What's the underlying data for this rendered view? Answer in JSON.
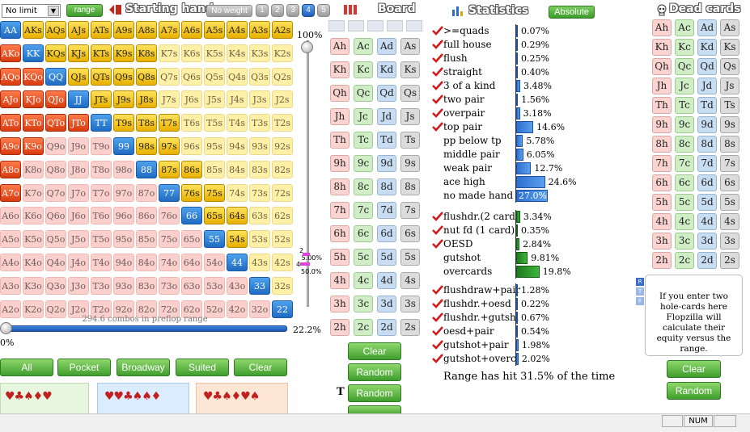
{
  "toolbar": {
    "limit_select": "No limit",
    "range_button": "range",
    "starting_hand_title": "Starting hand",
    "no_weight_button": "No weight",
    "weight_buttons": [
      "1",
      "2",
      "3",
      "4",
      "5"
    ],
    "board_title": "Board",
    "statistics_title": "Statistics",
    "absolute_button": "Absolute",
    "dead_cards_title": "Dead cards"
  },
  "grid": {
    "ranks": [
      "A",
      "K",
      "Q",
      "J",
      "T",
      "9",
      "8",
      "7",
      "6",
      "5",
      "4",
      "3",
      "2"
    ],
    "selected": [
      "AA",
      "AKs",
      "AQs",
      "AJs",
      "ATs",
      "A9s",
      "A8s",
      "A7s",
      "A6s",
      "A5s",
      "A4s",
      "A3s",
      "A2s",
      "AKo",
      "KK",
      "KQs",
      "KJs",
      "KTs",
      "K9s",
      "K8s",
      "AQo",
      "KQo",
      "QQ",
      "QJs",
      "QTs",
      "Q9s",
      "Q8s",
      "AJo",
      "KJo",
      "QJo",
      "JJ",
      "JTs",
      "J9s",
      "J8s",
      "ATo",
      "KTo",
      "QTo",
      "JTo",
      "TT",
      "T9s",
      "T8s",
      "T7s",
      "A9o",
      "K9o",
      "99",
      "98s",
      "97s",
      "A8o",
      "88",
      "87s",
      "86s",
      "A7o",
      "77",
      "76s",
      "75s",
      "66",
      "65s",
      "64s",
      "55",
      "54s",
      "44",
      "33",
      "22"
    ],
    "combos_text": "294.6 combos in preflop range",
    "range_pct": "22.2%",
    "slider_min_label": "0%"
  },
  "vslider": {
    "top_label": "100%",
    "small_labels": [
      "2",
      "5.00%",
      "4",
      "50.0%"
    ]
  },
  "range_buttons": [
    "All",
    "Pocket",
    "Broadway",
    "Suited",
    "Clear"
  ],
  "board": {
    "rows": [
      [
        "Ah",
        "Ac",
        "Ad",
        "As"
      ],
      [
        "Kh",
        "Kc",
        "Kd",
        "Ks"
      ],
      [
        "Qh",
        "Qc",
        "Qd",
        "Qs"
      ],
      [
        "Jh",
        "Jc",
        "Jd",
        "Js"
      ],
      [
        "Th",
        "Tc",
        "Td",
        "Ts"
      ],
      [
        "9h",
        "9c",
        "9d",
        "9s"
      ],
      [
        "8h",
        "8c",
        "8d",
        "8s"
      ],
      [
        "7h",
        "7c",
        "7d",
        "7s"
      ],
      [
        "6h",
        "6c",
        "6d",
        "6s"
      ],
      [
        "5h",
        "5c",
        "5d",
        "5s"
      ],
      [
        "4h",
        "4c",
        "4d",
        "4s"
      ],
      [
        "3h",
        "3c",
        "3d",
        "3s"
      ],
      [
        "2h",
        "2c",
        "2d",
        "2s"
      ]
    ],
    "clear_button": "Clear",
    "random_button": "Random",
    "turn_marker": "T",
    "random_turn_button": "Random"
  },
  "statistics": {
    "made_hands": [
      {
        "label": ">=quads",
        "value": "0.07%",
        "pct": 0.07,
        "checked": true
      },
      {
        "label": "full house",
        "value": "0.29%",
        "pct": 0.29,
        "checked": true
      },
      {
        "label": "flush",
        "value": "0.25%",
        "pct": 0.25,
        "checked": true
      },
      {
        "label": "straight",
        "value": "0.40%",
        "pct": 0.4,
        "checked": true
      },
      {
        "label": "3 of a kind",
        "value": "3.48%",
        "pct": 3.48,
        "checked": true
      },
      {
        "label": "two pair",
        "value": "1.56%",
        "pct": 1.56,
        "checked": true
      },
      {
        "label": "overpair",
        "value": "3.18%",
        "pct": 3.18,
        "checked": true
      },
      {
        "label": "top pair",
        "value": "14.6%",
        "pct": 14.6,
        "checked": true
      },
      {
        "label": "pp below tp",
        "value": "5.78%",
        "pct": 5.78,
        "checked": false
      },
      {
        "label": "middle pair",
        "value": "6.05%",
        "pct": 6.05,
        "checked": false
      },
      {
        "label": "weak pair",
        "value": "12.7%",
        "pct": 12.7,
        "checked": false
      },
      {
        "label": "ace high",
        "value": "24.6%",
        "pct": 24.6,
        "checked": false
      },
      {
        "label": "no made hand",
        "value": "27.0%",
        "pct": 27.0,
        "checked": false
      }
    ],
    "draws": [
      {
        "label": "flushdr.(2 card)",
        "value": "3.34%",
        "pct": 3.34,
        "checked": true
      },
      {
        "label": "nut fd (1 card)",
        "value": "0.35%",
        "pct": 0.35,
        "checked": true
      },
      {
        "label": "OESD",
        "value": "2.84%",
        "pct": 2.84,
        "checked": true
      },
      {
        "label": "gutshot",
        "value": "9.81%",
        "pct": 9.81,
        "checked": false
      },
      {
        "label": "overcards",
        "value": "19.8%",
        "pct": 19.8,
        "checked": false
      }
    ],
    "combos": [
      {
        "label": "flushdraw+pair",
        "value": "1.28%",
        "pct": 1.28,
        "checked": true
      },
      {
        "label": "flushdr.+oesd",
        "value": "0.22%",
        "pct": 0.22,
        "checked": true
      },
      {
        "label": "flushdr.+gutsh.",
        "value": "0.67%",
        "pct": 0.67,
        "checked": true
      },
      {
        "label": "oesd+pair",
        "value": "0.54%",
        "pct": 0.54,
        "checked": true
      },
      {
        "label": "gutshot+pair",
        "value": "1.98%",
        "pct": 1.98,
        "checked": true
      },
      {
        "label": "gutshot+overc.",
        "value": "2.02%",
        "pct": 2.02,
        "checked": true
      }
    ],
    "summary": "Range has hit 31.5% of the time"
  },
  "dead": {
    "info_text": "If you enter two hole-cards here Flopzilla will calculate their equity versus the range.",
    "rtf_icons": [
      "R",
      "T",
      "F"
    ],
    "clear_button": "Clear",
    "random_button": "Random"
  },
  "statusbar": {
    "num": "NUM"
  }
}
